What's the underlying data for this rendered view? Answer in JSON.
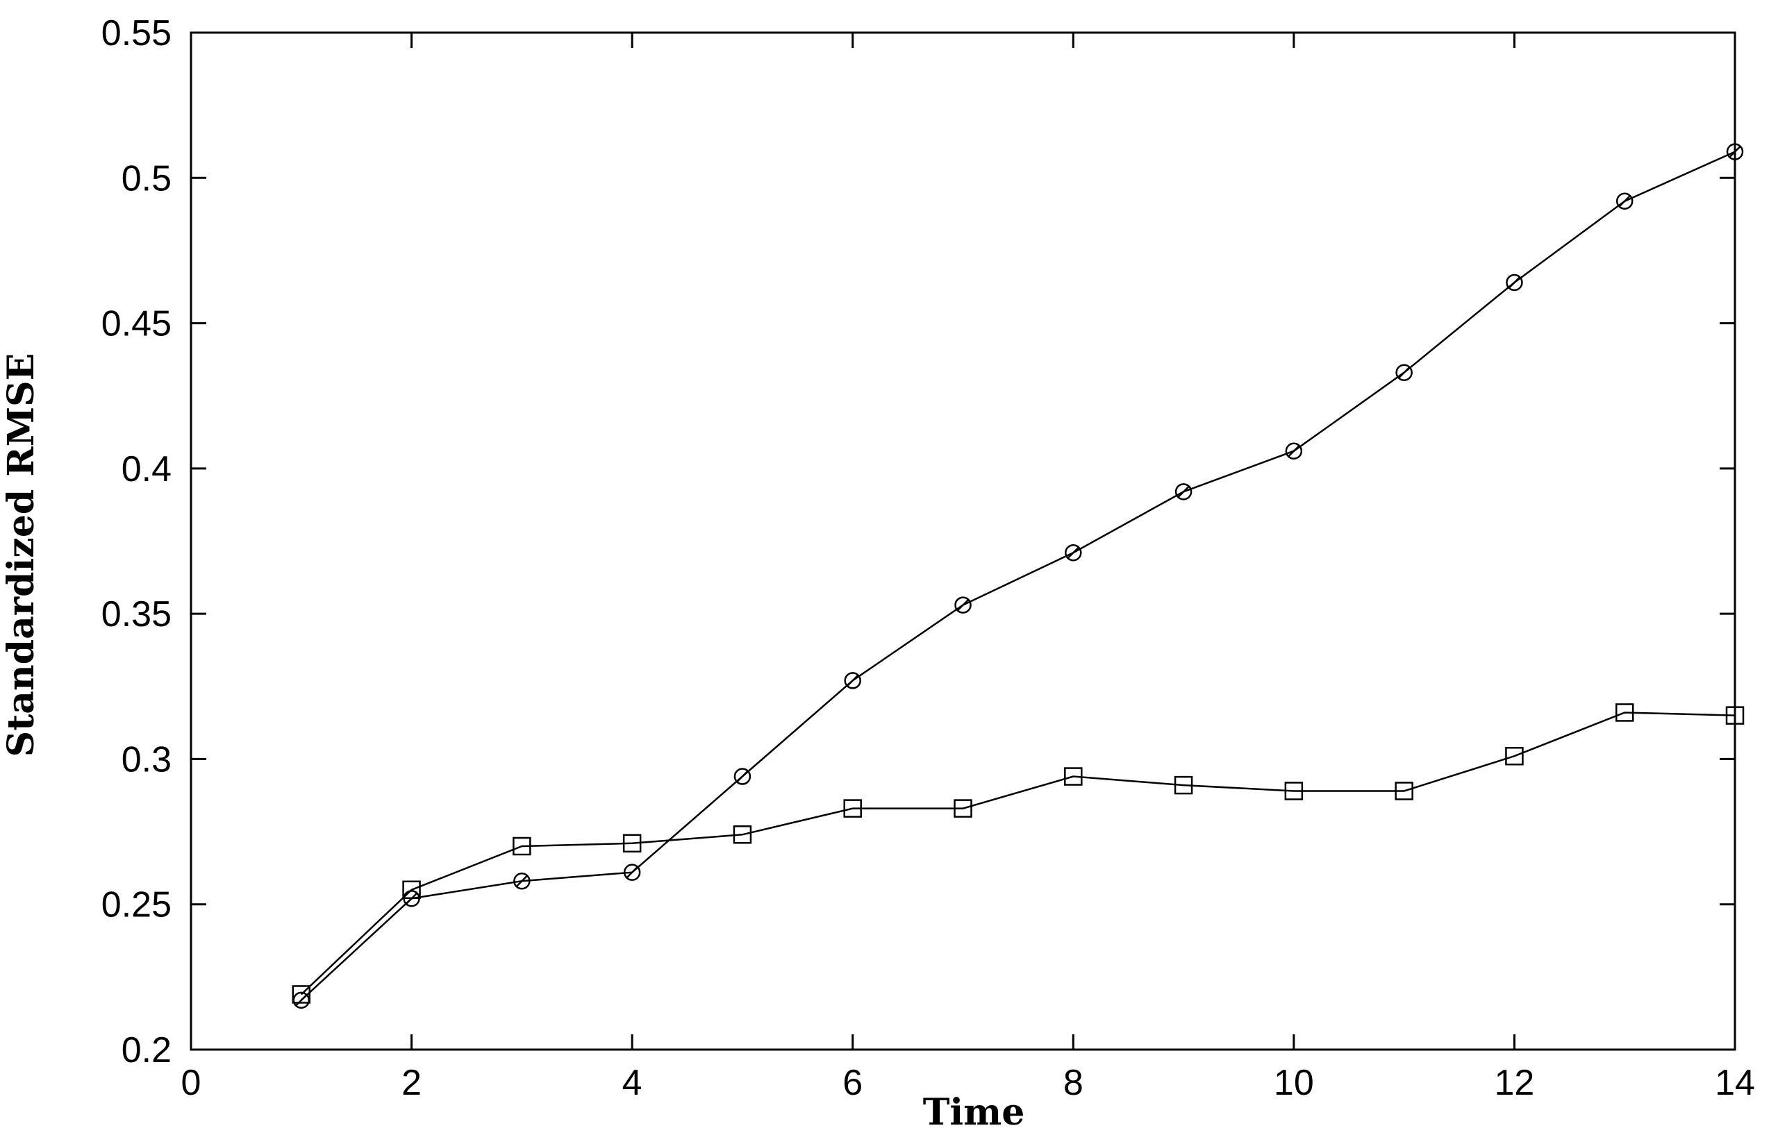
{
  "chart_data": {
    "type": "line",
    "title": "",
    "xlabel": "Time",
    "ylabel": "Standardized RMSE",
    "xlim": [
      0,
      14
    ],
    "ylim": [
      0.2,
      0.55
    ],
    "xticks": [
      "0",
      "2",
      "4",
      "6",
      "8",
      "10",
      "12",
      "14"
    ],
    "yticks": [
      "0.2",
      "0.25",
      "0.3",
      "0.35",
      "0.4",
      "0.45",
      "0.5",
      "0.55"
    ],
    "grid": false,
    "x": [
      1,
      2,
      3,
      4,
      5,
      6,
      7,
      8,
      9,
      10,
      11,
      12,
      13,
      14
    ],
    "series": [
      {
        "marker": "circle-slash",
        "color": "#000000",
        "values": [
          0.217,
          0.252,
          0.258,
          0.261,
          0.294,
          0.327,
          0.353,
          0.371,
          0.392,
          0.406,
          0.433,
          0.464,
          0.492,
          0.509
        ]
      },
      {
        "marker": "square",
        "color": "#000000",
        "values": [
          0.219,
          0.255,
          0.27,
          0.271,
          0.274,
          0.283,
          0.283,
          0.294,
          0.291,
          0.289,
          0.289,
          0.301,
          0.316,
          0.315
        ]
      }
    ]
  }
}
